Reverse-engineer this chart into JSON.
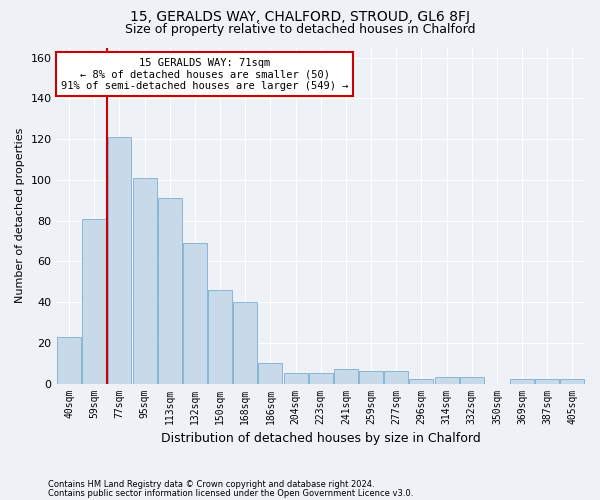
{
  "title1": "15, GERALDS WAY, CHALFORD, STROUD, GL6 8FJ",
  "title2": "Size of property relative to detached houses in Chalford",
  "xlabel": "Distribution of detached houses by size in Chalford",
  "ylabel": "Number of detached properties",
  "footnote1": "Contains HM Land Registry data © Crown copyright and database right 2024.",
  "footnote2": "Contains public sector information licensed under the Open Government Licence v3.0.",
  "categories": [
    "40sqm",
    "59sqm",
    "77sqm",
    "95sqm",
    "113sqm",
    "132sqm",
    "150sqm",
    "168sqm",
    "186sqm",
    "204sqm",
    "223sqm",
    "241sqm",
    "259sqm",
    "277sqm",
    "296sqm",
    "314sqm",
    "332sqm",
    "350sqm",
    "369sqm",
    "387sqm",
    "405sqm"
  ],
  "values": [
    23,
    81,
    121,
    101,
    91,
    69,
    46,
    40,
    10,
    5,
    5,
    7,
    6,
    6,
    2,
    3,
    3,
    0,
    2,
    2,
    2
  ],
  "bar_color": "#c8d9ea",
  "bar_edge_color": "#7bafd4",
  "vline_x_index": 2,
  "vline_color": "#cc0000",
  "annotation_line1": "15 GERALDS WAY: 71sqm",
  "annotation_line2": "← 8% of detached houses are smaller (50)",
  "annotation_line3": "91% of semi-detached houses are larger (549) →",
  "annotation_box_color": "#cc0000",
  "ylim": [
    0,
    165
  ],
  "yticks": [
    0,
    20,
    40,
    60,
    80,
    100,
    120,
    140,
    160
  ],
  "background_color": "#eef2f7",
  "grid_color": "#ffffff",
  "fig_width": 6.0,
  "fig_height": 5.0
}
